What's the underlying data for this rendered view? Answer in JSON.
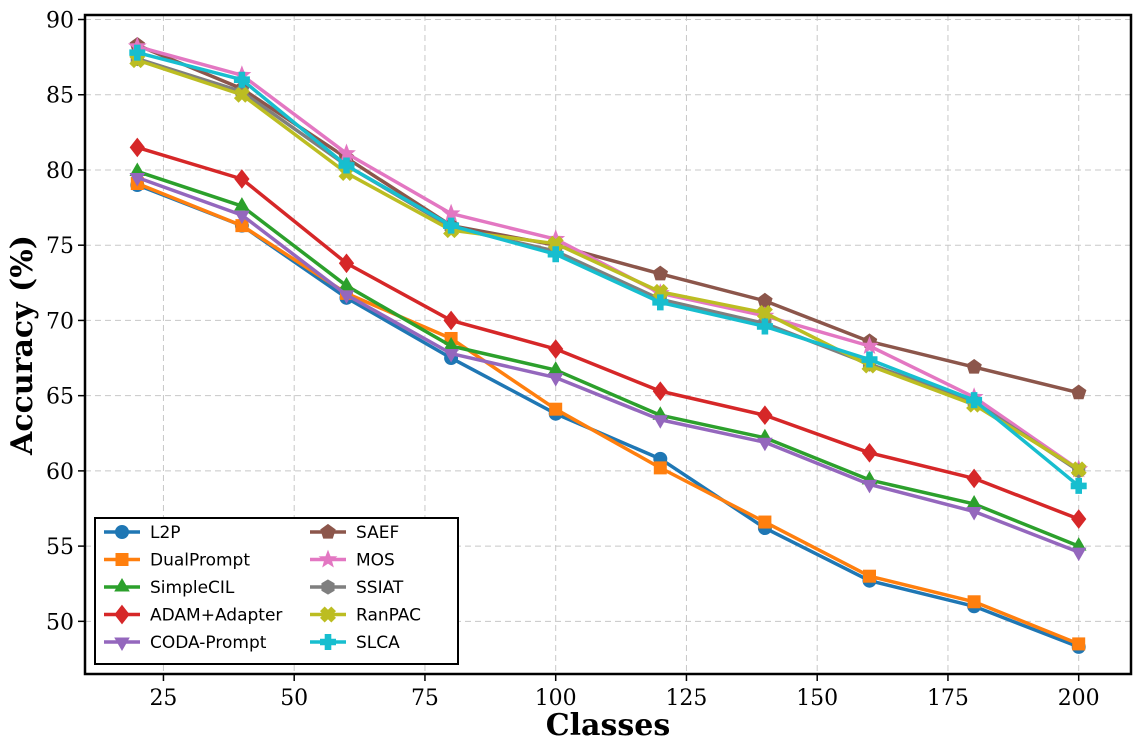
{
  "chart_data": {
    "type": "line",
    "xlabel": "Classes",
    "ylabel": "Accuracy (%)",
    "xlim": [
      10,
      210
    ],
    "ylim": [
      46.5,
      90.3
    ],
    "xticks": [
      25,
      50,
      75,
      100,
      125,
      150,
      175,
      200
    ],
    "yticks": [
      50,
      55,
      60,
      65,
      70,
      75,
      80,
      85,
      90
    ],
    "grid": true,
    "legend_position": "bottom-left",
    "legend_columns": 2,
    "x": [
      20,
      40,
      60,
      80,
      100,
      120,
      140,
      160,
      180,
      200
    ],
    "series": [
      {
        "name": "L2P",
        "color": "#1f77b4",
        "marker": "circle",
        "values": [
          79.0,
          76.3,
          71.5,
          67.5,
          63.8,
          60.8,
          56.2,
          52.7,
          51.0,
          48.3
        ]
      },
      {
        "name": "DualPrompt",
        "color": "#ff7f0e",
        "marker": "square",
        "values": [
          79.1,
          76.3,
          71.8,
          68.8,
          64.1,
          60.2,
          56.6,
          53.0,
          51.3,
          48.5
        ]
      },
      {
        "name": "SimpleCIL",
        "color": "#2ca02c",
        "marker": "triangle-up",
        "values": [
          79.9,
          77.6,
          72.3,
          68.3,
          66.7,
          63.7,
          62.2,
          59.4,
          57.8,
          55.0
        ]
      },
      {
        "name": "ADAM+Adapter",
        "color": "#d62728",
        "marker": "diamond",
        "values": [
          81.5,
          79.4,
          73.8,
          70.0,
          68.1,
          65.3,
          63.7,
          61.2,
          59.5,
          56.8
        ]
      },
      {
        "name": "CODA-Prompt",
        "color": "#9467bd",
        "marker": "triangle-down",
        "values": [
          79.5,
          77.0,
          71.7,
          67.8,
          66.2,
          63.4,
          61.9,
          59.1,
          57.3,
          54.6
        ]
      },
      {
        "name": "SAEF",
        "color": "#8c564b",
        "marker": "pentagon",
        "values": [
          88.3,
          85.4,
          80.8,
          76.3,
          75.0,
          73.1,
          71.3,
          68.6,
          66.9,
          65.2
        ]
      },
      {
        "name": "MOS",
        "color": "#e377c2",
        "marker": "star",
        "values": [
          88.2,
          86.3,
          81.1,
          77.1,
          75.4,
          71.8,
          70.3,
          68.3,
          64.9,
          60.1
        ]
      },
      {
        "name": "SSIAT",
        "color": "#7f7f7f",
        "marker": "hexagon",
        "values": [
          87.4,
          85.2,
          80.3,
          76.2,
          74.6,
          71.4,
          69.8,
          67.1,
          64.6,
          60.0
        ]
      },
      {
        "name": "RanPAC",
        "color": "#bcbd22",
        "marker": "plus-filled",
        "values": [
          87.3,
          85.0,
          79.8,
          76.0,
          75.1,
          71.9,
          70.5,
          67.0,
          64.4,
          60.1
        ]
      },
      {
        "name": "SLCA",
        "color": "#17becf",
        "marker": "plus",
        "values": [
          87.8,
          86.0,
          80.3,
          76.3,
          74.4,
          71.2,
          69.6,
          67.4,
          64.7,
          59.0
        ]
      }
    ]
  }
}
